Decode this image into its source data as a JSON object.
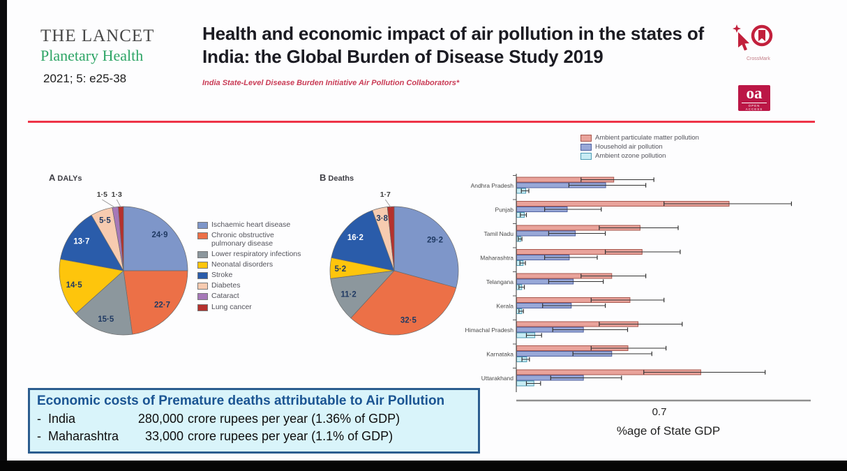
{
  "journal": {
    "name_line1": "THE LANCET",
    "name_line2": "Planetary Health",
    "citation": "2021; 5: e25-38"
  },
  "header": {
    "title": "Health and economic impact of air pollution in the states of India: the Global Burden of Disease Study 2019",
    "byline": "India State-Level Disease Burden Initiative Air Pollution Collaborators*",
    "crossmark_label": "CrossMark",
    "oa_label": "oa",
    "oa_sub": "OPEN ACCESS"
  },
  "colors": {
    "rule_red": "#ee3448",
    "byline_red": "#c93b55",
    "lancet_green": "#2ea566",
    "oa_crimson": "#bb1746",
    "crossmark_crimson": "#c2203c",
    "ecobox_bg": "#d9f4fa",
    "ecobox_border": "#2c5d8f",
    "ecobox_title_blue": "#1b5593"
  },
  "chart_data": [
    {
      "type": "pie",
      "panel": "A",
      "title": "DALYs",
      "labels": [
        "Ischaemic heart disease",
        "Chronic obstructive pulmonary disease",
        "Lower respiratory infections",
        "Neonatal disorders",
        "Stroke",
        "Diabetes",
        "Cataract",
        "Lung cancer"
      ],
      "values": [
        24.9,
        22.7,
        15.5,
        14.5,
        13.7,
        5.5,
        1.5,
        1.3
      ],
      "value_labels": [
        "24·9",
        "22·7",
        "15·5",
        "14·5",
        "13·7",
        "5·5",
        "1·5",
        "1·3"
      ],
      "colors": [
        "#7e96c9",
        "#ec7047",
        "#8c979d",
        "#fec50c",
        "#2a5caa",
        "#f7cbb0",
        "#a678b8",
        "#b5312d"
      ]
    },
    {
      "type": "pie",
      "panel": "B",
      "title": "Deaths",
      "labels": [
        "Ischaemic heart disease",
        "Chronic obstructive pulmonary disease",
        "Lower respiratory infections",
        "Neonatal disorders",
        "Stroke",
        "Diabetes",
        "Lung cancer"
      ],
      "values": [
        29.2,
        32.5,
        11.2,
        5.2,
        16.2,
        3.8,
        1.7
      ],
      "value_labels": [
        "29·2",
        "32·5",
        "11·2",
        "5·2",
        "16·2",
        "3·8",
        "1·7"
      ],
      "colors": [
        "#7e96c9",
        "#ec7047",
        "#8c979d",
        "#fec50c",
        "#2a5caa",
        "#f7cbb0",
        "#b5312d"
      ]
    },
    {
      "type": "bar",
      "orientation": "horizontal",
      "legend": [
        "Ambient particulate matter pollution",
        "Household air pollution",
        "Ambient ozone pollution"
      ],
      "categories": [
        "Andhra Pradesh",
        "Punjab",
        "Tamil Nadu",
        "Maharashtra",
        "Telangana",
        "Kerala",
        "Himachal Pradesh",
        "Karnataka",
        "Uttarakhand"
      ],
      "series": [
        {
          "name": "Ambient particulate matter pollution",
          "values": [
            0.48,
            1.05,
            0.61,
            0.62,
            0.47,
            0.56,
            0.6,
            0.55,
            0.91
          ],
          "ci_low": [
            0.32,
            0.73,
            0.41,
            0.44,
            0.32,
            0.37,
            0.41,
            0.37,
            0.63
          ],
          "ci_high": [
            0.68,
            1.36,
            0.8,
            0.81,
            0.64,
            0.73,
            0.82,
            0.74,
            1.23
          ]
        },
        {
          "name": "Household air pollution",
          "values": [
            0.44,
            0.25,
            0.29,
            0.26,
            0.28,
            0.27,
            0.33,
            0.47,
            0.33
          ],
          "ci_low": [
            0.26,
            0.14,
            0.16,
            0.14,
            0.16,
            0.13,
            0.18,
            0.28,
            0.17
          ],
          "ci_high": [
            0.64,
            0.42,
            0.44,
            0.4,
            0.43,
            0.44,
            0.55,
            0.67,
            0.52
          ]
        },
        {
          "name": "Ambient ozone pollution",
          "values": [
            0.045,
            0.038,
            0.02,
            0.032,
            0.025,
            0.025,
            0.09,
            0.05,
            0.085
          ],
          "ci_low": [
            0.025,
            0.02,
            0.01,
            0.018,
            0.013,
            0.013,
            0.05,
            0.028,
            0.05
          ],
          "ci_high": [
            0.062,
            0.05,
            0.028,
            0.045,
            0.04,
            0.035,
            0.125,
            0.065,
            0.12
          ]
        }
      ],
      "series_colors": {
        "fill": [
          "#e9a39b",
          "#98a8d8",
          "#c8ecf4"
        ],
        "border": [
          "#a8564c",
          "#50619f",
          "#4d9cb5"
        ]
      },
      "xlabel": "%age of State GDP",
      "x_tick_labels": [
        "0.7"
      ],
      "x_tick_values": [
        0.7
      ],
      "xlim": [
        0,
        1.45
      ],
      "legend_position": "top-right",
      "grid": false
    }
  ],
  "economic_box": {
    "title": "Economic costs of Premature deaths attributable to Air Pollution",
    "bullet": "-",
    "rows": [
      {
        "label": "India",
        "amount": "280,000",
        "rest": "crore rupees per year (1.36% of GDP)"
      },
      {
        "label": "Maharashtra",
        "amount": "33,000",
        "rest": "crore rupees per year (1.1% of GDP)"
      }
    ]
  }
}
